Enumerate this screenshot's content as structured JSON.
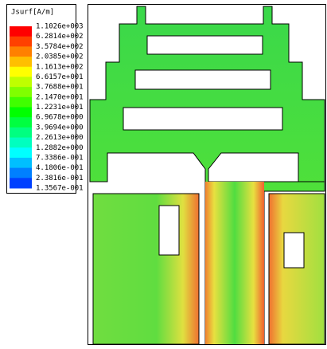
{
  "legend": {
    "title": "Jsurf[A/m]",
    "labels": [
      "1.1026e+003",
      "6.2814e+002",
      "3.5784e+002",
      "2.0385e+002",
      "1.1613e+002",
      "6.6157e+001",
      "3.7688e+001",
      "2.1470e+001",
      "1.2231e+001",
      "6.9678e+000",
      "3.9694e+000",
      "2.2613e+000",
      "1.2882e+000",
      "7.3386e-001",
      "4.1806e-001",
      "2.3816e-001",
      "1.3567e-001"
    ],
    "colors": [
      "#ff0000",
      "#ff4000",
      "#ff8000",
      "#ffbf00",
      "#ffff00",
      "#bfff00",
      "#80ff00",
      "#40ff00",
      "#00ff00",
      "#00ff40",
      "#00ff80",
      "#00ffbf",
      "#00ffff",
      "#00bfff",
      "#0080ff",
      "#0040ff"
    ]
  }
}
